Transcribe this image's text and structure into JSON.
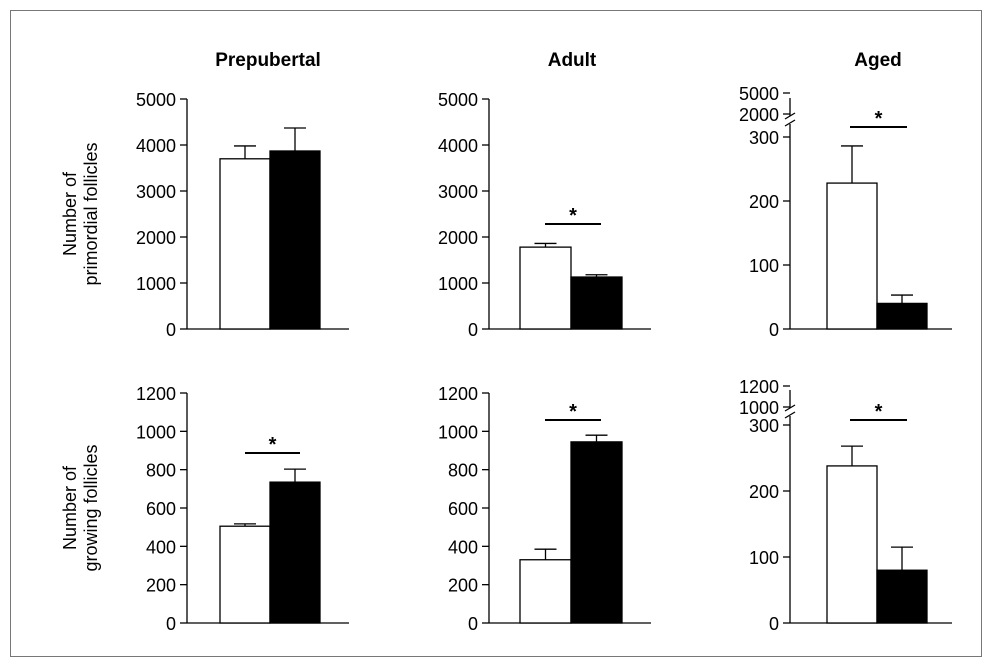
{
  "chart_data": [
    {
      "type": "bar",
      "panel": "primordial-prepubertal",
      "title": "Prepubertal",
      "ylabel": [
        "Number of",
        "primordial follicles"
      ],
      "ylim": [
        0,
        5000
      ],
      "yticks": [
        "0",
        "1000",
        "2000",
        "3000",
        "4000",
        "5000"
      ],
      "series": [
        {
          "color": "#ffffff",
          "values": [
            3700
          ],
          "errors": [
            280
          ]
        },
        {
          "color": "#000000",
          "values": [
            3870
          ],
          "errors": [
            500
          ]
        }
      ],
      "significance": ""
    },
    {
      "type": "bar",
      "panel": "primordial-adult",
      "title": "Adult",
      "ylim": [
        0,
        5000
      ],
      "yticks": [
        "0",
        "1000",
        "2000",
        "3000",
        "4000",
        "5000"
      ],
      "series": [
        {
          "color": "#ffffff",
          "values": [
            1780
          ],
          "errors": [
            80
          ]
        },
        {
          "color": "#000000",
          "values": [
            1130
          ],
          "errors": [
            50
          ]
        }
      ],
      "significance": "*"
    },
    {
      "type": "bar",
      "panel": "primordial-aged",
      "title": "Aged",
      "ylim": [
        0,
        300
      ],
      "yticks": [
        "0",
        "100",
        "200",
        "300"
      ],
      "axis_break_labels": [
        "2000",
        "5000"
      ],
      "series": [
        {
          "color": "#ffffff",
          "values": [
            228
          ],
          "errors": [
            58
          ]
        },
        {
          "color": "#000000",
          "values": [
            40
          ],
          "errors": [
            13
          ]
        }
      ],
      "significance": "*"
    },
    {
      "type": "bar",
      "panel": "growing-prepubertal",
      "ylabel": [
        "Number of",
        "growing follicles"
      ],
      "ylim": [
        0,
        1200
      ],
      "yticks": [
        "0",
        "200",
        "400",
        "600",
        "800",
        "1000",
        "1200"
      ],
      "series": [
        {
          "color": "#ffffff",
          "values": [
            505
          ],
          "errors": [
            12
          ]
        },
        {
          "color": "#000000",
          "values": [
            735
          ],
          "errors": [
            68
          ]
        }
      ],
      "significance": "*"
    },
    {
      "type": "bar",
      "panel": "growing-adult",
      "ylim": [
        0,
        1200
      ],
      "yticks": [
        "0",
        "200",
        "400",
        "600",
        "800",
        "1000",
        "1200"
      ],
      "series": [
        {
          "color": "#ffffff",
          "values": [
            330
          ],
          "errors": [
            55
          ]
        },
        {
          "color": "#000000",
          "values": [
            945
          ],
          "errors": [
            35
          ]
        }
      ],
      "significance": "*"
    },
    {
      "type": "bar",
      "panel": "growing-aged",
      "ylim": [
        0,
        300
      ],
      "yticks": [
        "0",
        "100",
        "200",
        "300"
      ],
      "axis_break_labels": [
        "1000",
        "1200"
      ],
      "series": [
        {
          "color": "#ffffff",
          "values": [
            238
          ],
          "errors": [
            30
          ]
        },
        {
          "color": "#000000",
          "values": [
            80
          ],
          "errors": [
            35
          ]
        }
      ],
      "significance": "*"
    }
  ]
}
